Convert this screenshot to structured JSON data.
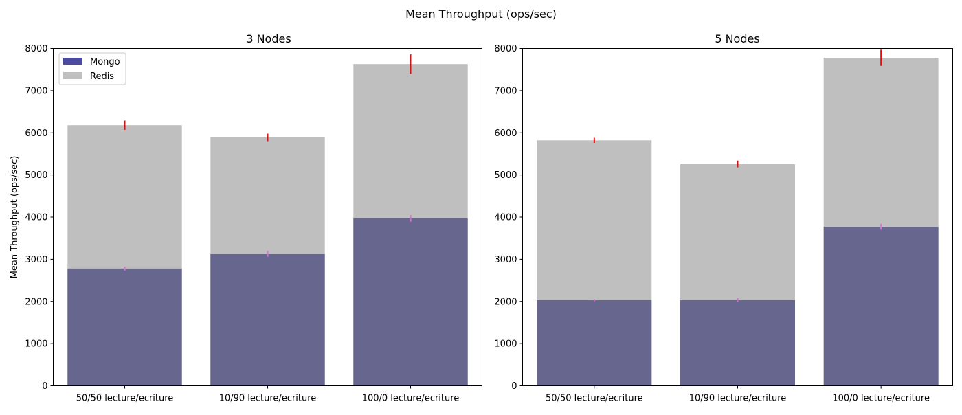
{
  "suptitle": "Mean Throughput (ops/sec)",
  "colors": {
    "mongo": "#4b4ba0",
    "redis": "#bfbfbf",
    "overlap": "#66668f",
    "redis_error": "#ff0000",
    "mongo_error": "#da70d6"
  },
  "legend": {
    "mongo": "Mongo",
    "redis": "Redis"
  },
  "chart_data": [
    {
      "type": "bar",
      "title": "3 Nodes",
      "xlabel": "",
      "ylabel": "Mean Throughput (ops/sec)",
      "ylim": [
        0,
        8000
      ],
      "yticks": [
        0,
        1000,
        2000,
        3000,
        4000,
        5000,
        6000,
        7000,
        8000
      ],
      "categories": [
        "50/50 lecture/ecriture",
        "10/90 lecture/ecriture",
        "100/0 lecture/ecriture"
      ],
      "legend_position": "upper left",
      "grid": false,
      "series": [
        {
          "name": "Mongo",
          "values": [
            2780,
            3130,
            3970
          ],
          "errors": [
            50,
            70,
            80
          ]
        },
        {
          "name": "Redis",
          "values": [
            6180,
            5890,
            7630
          ],
          "errors": [
            110,
            90,
            230
          ]
        }
      ]
    },
    {
      "type": "bar",
      "title": "5 Nodes",
      "xlabel": "",
      "ylabel": "",
      "ylim": [
        0,
        8000
      ],
      "yticks": [
        0,
        1000,
        2000,
        3000,
        4000,
        5000,
        6000,
        7000,
        8000
      ],
      "categories": [
        "50/50 lecture/ecriture",
        "10/90 lecture/ecriture",
        "100/0 lecture/ecriture"
      ],
      "legend_position": "none",
      "grid": false,
      "series": [
        {
          "name": "Mongo",
          "values": [
            2030,
            2030,
            3770
          ],
          "errors": [
            30,
            50,
            70
          ]
        },
        {
          "name": "Redis",
          "values": [
            5820,
            5260,
            7780
          ],
          "errors": [
            60,
            80,
            190
          ]
        }
      ]
    }
  ]
}
